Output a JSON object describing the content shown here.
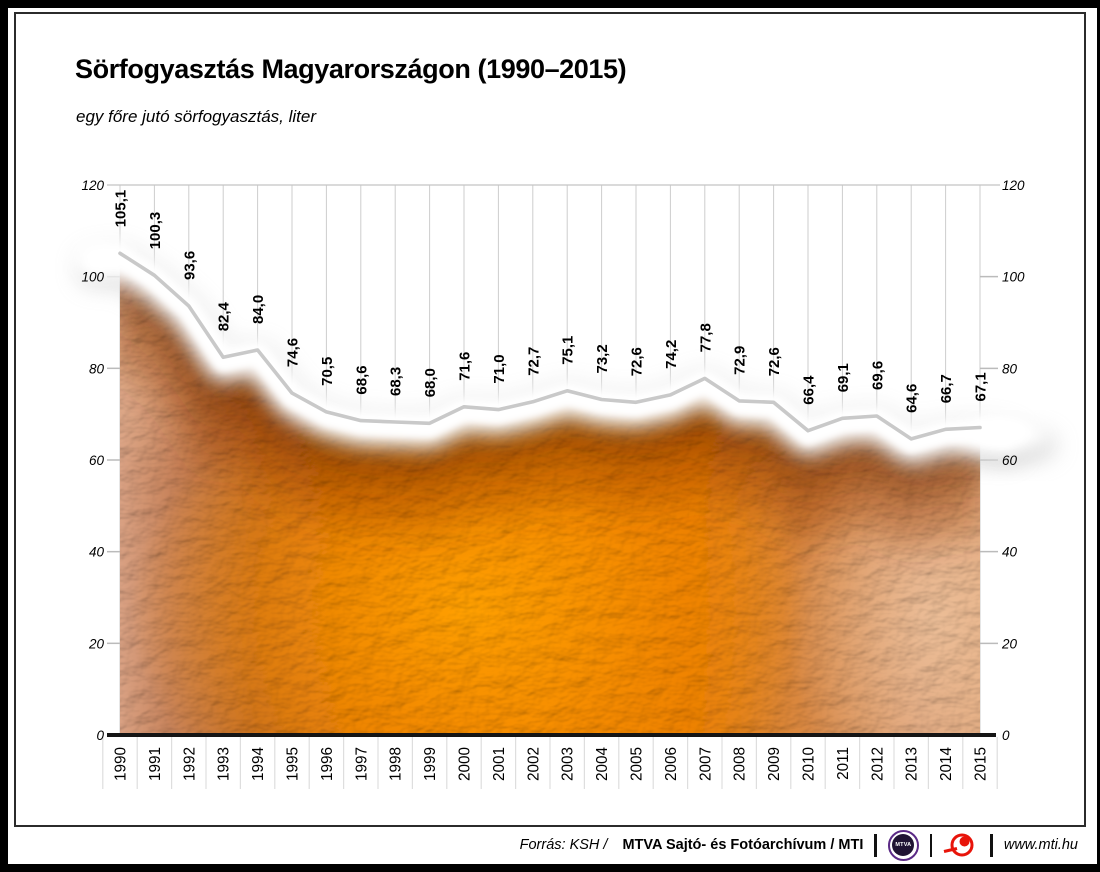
{
  "title": "Sörfogyasztás Magyarországon (1990–2015)",
  "subtitle": "egy főre jutó sörfogyasztás, liter",
  "chart_data": {
    "type": "area",
    "title": "Sörfogyasztás Magyarországon (1990–2015)",
    "subtitle": "egy főre jutó sörfogyasztás, liter",
    "categories": [
      "1990",
      "1991",
      "1992",
      "1993",
      "1994",
      "1995",
      "1996",
      "1997",
      "1998",
      "1999",
      "2000",
      "2001",
      "2002",
      "2003",
      "2004",
      "2005",
      "2006",
      "2007",
      "2008",
      "2009",
      "2010",
      "2011",
      "2012",
      "2013",
      "2014",
      "2015"
    ],
    "values": [
      105.1,
      100.3,
      93.6,
      82.4,
      84.0,
      74.6,
      70.5,
      68.6,
      68.3,
      68.0,
      71.6,
      71.0,
      72.7,
      75.1,
      73.2,
      72.6,
      74.2,
      77.8,
      72.9,
      72.6,
      66.4,
      69.1,
      69.6,
      64.6,
      66.7,
      67.1
    ],
    "point_labels": [
      "105,1",
      "100,3",
      "93,6",
      "82,4",
      "84,0",
      "74,6",
      "70,5",
      "68,6",
      "68,3",
      "68,0",
      "71,6",
      "71,0",
      "72,7",
      "75,1",
      "73,2",
      "72,6",
      "74,2",
      "77,8",
      "72,9",
      "72,6",
      "66,4",
      "69,1",
      "69,6",
      "64,6",
      "66,7",
      "67,1"
    ],
    "xlabel": "",
    "ylabel": "",
    "ylim": [
      0,
      120
    ],
    "yticks": [
      0,
      20,
      40,
      60,
      80,
      100,
      120
    ],
    "yticks_both_sides": true,
    "grid": "vertical",
    "legend": "none",
    "decimal_separator": ",",
    "area_style": "beer-photo-texture with white foam band and gray outline"
  },
  "colors": {
    "beer_orange": "#f58e00",
    "beer_dark_edge": "#b4551a",
    "beer_light_edge": "#dca584",
    "foam_white": "#ffffff",
    "line_gray": "#c9c9c9",
    "grid_gray": "#cccccc",
    "axis_black": "#151515",
    "mtva_purple": "#5b2a86",
    "mti_red": "#e8140a"
  },
  "footer": {
    "source_italic": "Forrás: KSH /",
    "source_bold": "MTVA Sajtó- és Fotóarchívum / MTI",
    "separator": "|",
    "mtva_logo_text": "MTVA",
    "website": "www.mti.hu"
  }
}
